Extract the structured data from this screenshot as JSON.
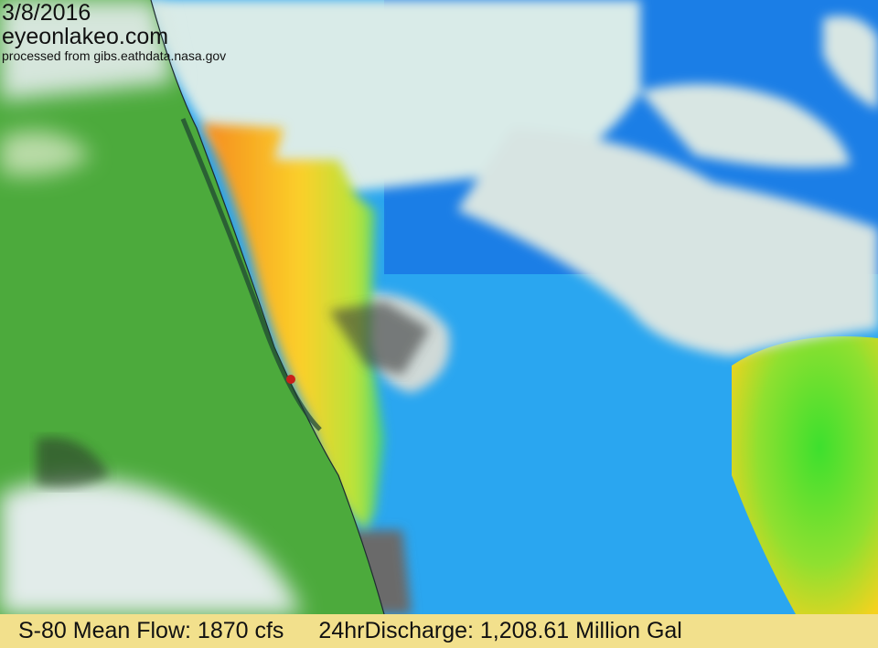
{
  "overlay": {
    "date": "3/8/2016",
    "site": "eyeonlakeo.com",
    "source": "processed from gibs.eathdata.nasa.gov"
  },
  "footer": {
    "mean_flow": "S-80 Mean Flow: 1870 cfs",
    "discharge": "24hrDischarge: 1,208.61 Million Gal"
  },
  "colors": {
    "land": "#4caa3c",
    "ocean": "#2aa6f0",
    "plume": "#f7a823",
    "cloud": "#dff3ef",
    "footer": "#f2e08c"
  }
}
